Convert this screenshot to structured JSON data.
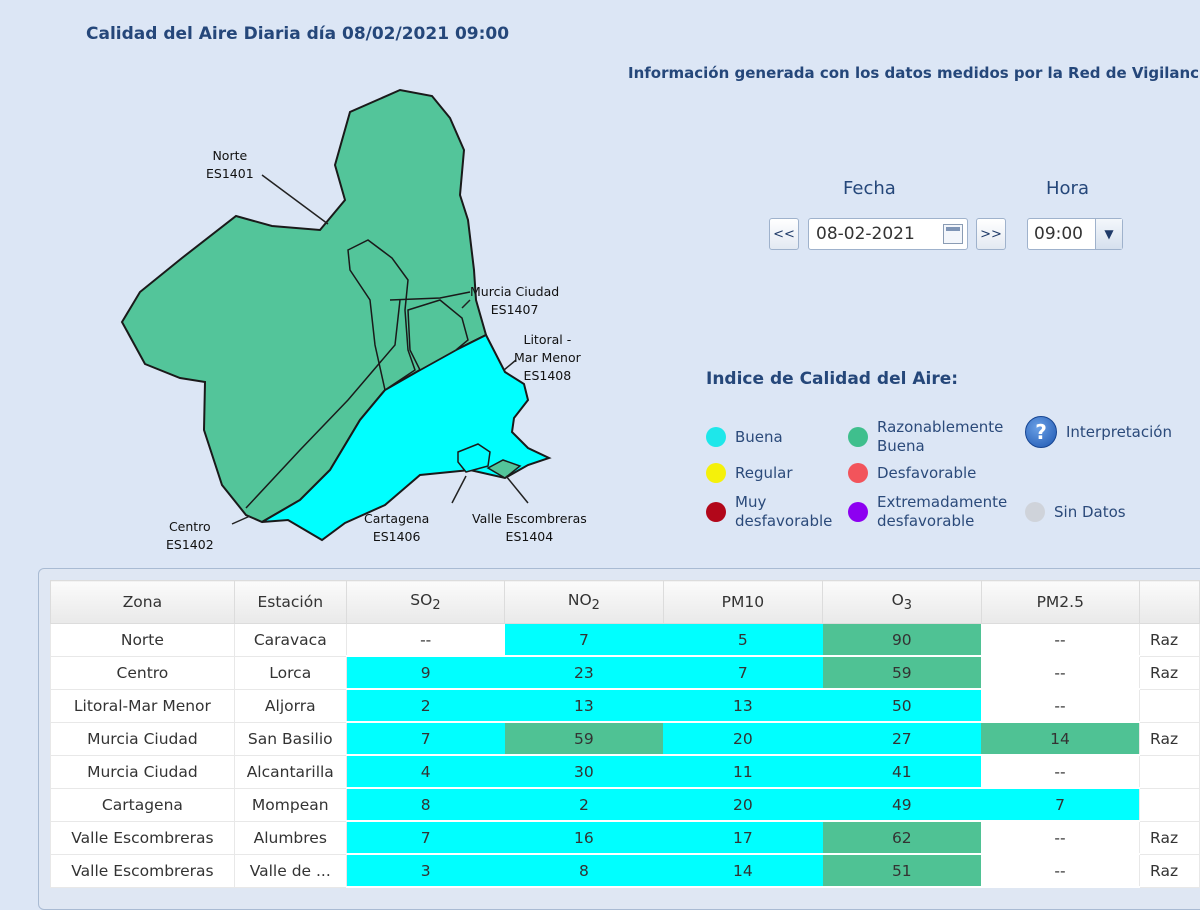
{
  "header": {
    "title": "Calidad del Aire Diaria día 08/02/2021 09:00",
    "info": "Información generada con los datos medidos por la Red de Vigilancia"
  },
  "map": {
    "regions": [
      {
        "name": "Norte",
        "code": "ES1401",
        "category": "Razonablemente Buena"
      },
      {
        "name": "Centro",
        "code": "ES1402",
        "category": "Razonablemente Buena"
      },
      {
        "name": "Murcia Ciudad",
        "code": "ES1407",
        "category": "Razonablemente Buena"
      },
      {
        "name": "Litoral -",
        "name2": "Mar Menor",
        "code": "ES1408",
        "category": "Buena"
      },
      {
        "name": "Cartagena",
        "code": "ES1406",
        "category": "Buena"
      },
      {
        "name": "Valle Escombreras",
        "code": "ES1404",
        "category": "Razonablemente Buena"
      }
    ]
  },
  "controls": {
    "fecha_label": "Fecha",
    "hora_label": "Hora",
    "prev_label": "<<",
    "next_label": ">>",
    "date_value": "08-02-2021",
    "hour_value": "09:00",
    "hour_arrow": "▼"
  },
  "legend": {
    "title": "Indice de Calidad del Aire:",
    "items": [
      {
        "line1": "Buena",
        "line2": "",
        "color": "#1ee7ea"
      },
      {
        "line1": "Razonablemente",
        "line2": "Buena",
        "color": "#3fbf8d"
      },
      {
        "line1": "Regular",
        "line2": "",
        "color": "#f5f10a"
      },
      {
        "line1": "Desfavorable",
        "line2": "",
        "color": "#f2545b"
      },
      {
        "line1": "Muy",
        "line2": "desfavorable",
        "color": "#b2071a"
      },
      {
        "line1": "Extremadamente",
        "line2": "desfavorable",
        "color": "#8d00f1"
      },
      {
        "line1": "Sin Datos",
        "line2": "",
        "color": "#cfd3da"
      }
    ],
    "help_icon": "?",
    "interpretacion": "Interpretación"
  },
  "table": {
    "headers": [
      {
        "text": "Zona",
        "sub": ""
      },
      {
        "text": "Estación",
        "sub": ""
      },
      {
        "text": "SO",
        "sub": "2"
      },
      {
        "text": "NO",
        "sub": "2"
      },
      {
        "text": "PM10",
        "sub": ""
      },
      {
        "text": "O",
        "sub": "3"
      },
      {
        "text": "PM2.5",
        "sub": ""
      },
      {
        "text": "",
        "sub": ""
      }
    ],
    "rows": [
      {
        "zona": "Norte",
        "estacion": "Caravaca",
        "so2": "--",
        "no2": "7",
        "pm10": "5",
        "o3": "90",
        "pm25": "--",
        "last": "Raz"
      },
      {
        "zona": "Centro",
        "estacion": "Lorca",
        "so2": "9",
        "no2": "23",
        "pm10": "7",
        "o3": "59",
        "pm25": "--",
        "last": "Raz"
      },
      {
        "zona": "Litoral-Mar Menor",
        "estacion": "Aljorra",
        "so2": "2",
        "no2": "13",
        "pm10": "13",
        "o3": "50",
        "pm25": "--",
        "last": ""
      },
      {
        "zona": "Murcia Ciudad",
        "estacion": "San Basilio",
        "so2": "7",
        "no2": "59",
        "pm10": "20",
        "o3": "27",
        "pm25": "14",
        "last": "Raz"
      },
      {
        "zona": "Murcia Ciudad",
        "estacion": "Alcantarilla",
        "so2": "4",
        "no2": "30",
        "pm10": "11",
        "o3": "41",
        "pm25": "--",
        "last": ""
      },
      {
        "zona": "Cartagena",
        "estacion": "Mompean",
        "so2": "8",
        "no2": "2",
        "pm10": "20",
        "o3": "49",
        "pm25": "7",
        "last": ""
      },
      {
        "zona": "Valle Escombreras",
        "estacion": "Alumbres",
        "so2": "7",
        "no2": "16",
        "pm10": "17",
        "o3": "62",
        "pm25": "--",
        "last": "Raz"
      },
      {
        "zona": "Valle Escombreras",
        "estacion": "Valle de ...",
        "so2": "3",
        "no2": "8",
        "pm10": "14",
        "o3": "51",
        "pm25": "--",
        "last": "Raz"
      }
    ]
  }
}
